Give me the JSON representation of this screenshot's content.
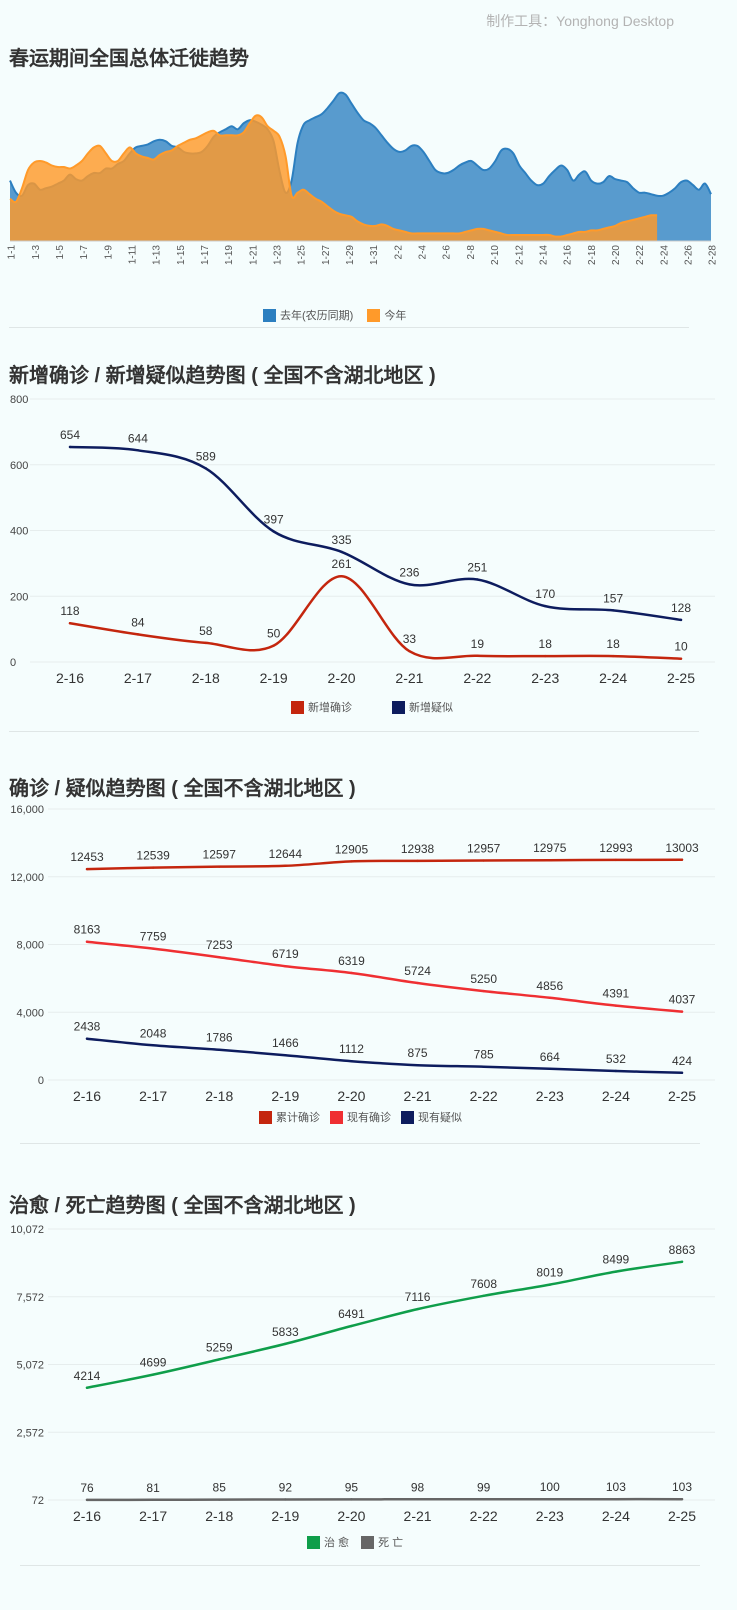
{
  "credit": "制作工具：Yonghong Desktop",
  "colors": {
    "last_year": "#2c7fc0",
    "this_year": "#ff9a2a",
    "new_confirmed": "#c4260e",
    "new_suspected": "#0d1c5e",
    "total_confirmed": "#c4260e",
    "current_confirmed": "#ef2f32",
    "current_suspected": "#0d1c5e",
    "cured": "#0f9e4a",
    "dead": "#666666"
  },
  "panels": {
    "migration": {
      "title": "春运期间全国总体迁徙趋势",
      "legend": [
        "去年(农历同期)",
        "今年"
      ]
    },
    "new_cases": {
      "title": "新增确诊 / 新增疑似趋势图 ( 全国不含湖北地区 )",
      "legend": [
        "新增确诊",
        "新增疑似"
      ]
    },
    "cumulative": {
      "title": "确诊 / 疑似趋势图 ( 全国不含湖北地区 )",
      "legend": [
        "累计确诊",
        "现有确诊",
        "现有疑似"
      ]
    },
    "outcomes": {
      "title": "治愈 / 死亡趋势图 ( 全国不含湖北地区 )",
      "legend": [
        "治 愈",
        "死 亡"
      ]
    }
  },
  "chart_data": [
    {
      "type": "area",
      "title": "春运期间全国总体迁徙趋势",
      "x_ticks": [
        "1-1",
        "1-3",
        "1-5",
        "1-7",
        "1-9",
        "1-11",
        "1-13",
        "1-15",
        "1-17",
        "1-19",
        "1-21",
        "1-23",
        "1-25",
        "1-27",
        "1-29",
        "1-31",
        "2-2",
        "2-4",
        "2-6",
        "2-8",
        "2-10",
        "2-12",
        "2-14",
        "2-16",
        "2-18",
        "2-20",
        "2-22",
        "2-24",
        "2-26",
        "2-28"
      ],
      "ylim": [
        0,
        100
      ],
      "series": [
        {
          "name": "去年(农历同期)",
          "values": [
            40,
            32,
            30,
            37,
            38,
            34,
            35,
            36,
            38,
            40,
            44,
            41,
            40,
            43,
            45,
            45,
            48,
            48,
            51,
            53,
            58,
            62,
            63,
            64,
            66,
            67,
            66,
            63,
            62,
            59,
            58,
            58,
            59,
            63,
            69,
            72,
            74,
            76,
            74,
            78,
            80,
            79,
            77,
            74,
            66,
            46,
            32,
            40,
            65,
            77,
            80,
            82,
            84,
            88,
            93,
            98,
            97,
            91,
            85,
            80,
            78,
            75,
            70,
            65,
            61,
            59,
            60,
            63,
            63,
            59,
            53,
            47,
            45,
            45,
            47,
            50,
            52,
            53,
            50,
            47,
            48,
            53,
            60,
            61,
            58,
            50,
            45,
            40,
            37,
            38,
            43,
            47,
            50,
            47,
            40,
            44,
            46,
            40,
            38,
            39,
            43,
            41,
            40,
            39,
            35,
            32,
            32,
            31,
            30,
            30,
            32,
            35,
            39,
            40,
            37,
            34,
            38,
            31
          ]
        },
        {
          "name": "今年",
          "values": [
            28,
            26,
            35,
            47,
            52,
            53,
            52,
            50,
            49,
            49,
            48,
            50,
            53,
            58,
            62,
            63,
            58,
            53,
            53,
            58,
            62,
            58,
            56,
            55,
            54,
            57,
            59,
            60,
            63,
            65,
            67,
            68,
            70,
            72,
            73,
            70,
            70,
            70,
            70,
            72,
            78,
            83,
            82,
            76,
            73,
            69,
            56,
            30,
            32,
            34,
            31,
            28,
            26,
            23,
            20,
            18,
            17,
            16,
            13,
            11,
            10,
            10,
            11,
            10,
            8,
            7,
            6,
            5,
            5,
            5,
            5,
            5,
            5,
            5,
            5,
            5,
            6,
            7,
            8,
            8,
            7,
            6,
            5,
            4,
            4,
            4,
            4,
            4,
            4,
            4,
            4,
            3,
            3,
            4,
            5,
            6,
            6,
            7,
            7,
            8,
            9,
            10,
            12,
            13,
            14,
            15,
            16,
            17,
            17,
            null,
            null,
            null,
            null,
            null,
            null,
            null,
            null,
            null
          ]
        }
      ]
    },
    {
      "type": "line",
      "title": "新增确诊 / 新增疑似趋势图 ( 全国不含湖北地区 )",
      "categories": [
        "2-16",
        "2-17",
        "2-18",
        "2-19",
        "2-20",
        "2-21",
        "2-22",
        "2-23",
        "2-24",
        "2-25"
      ],
      "ylim": [
        0,
        800
      ],
      "y_ticks": [
        "0",
        "200",
        "400",
        "600",
        "800"
      ],
      "series": [
        {
          "name": "新增确诊",
          "values": [
            118,
            84,
            58,
            50,
            261,
            33,
            19,
            18,
            18,
            10
          ]
        },
        {
          "name": "新增疑似",
          "values": [
            654,
            644,
            589,
            397,
            335,
            236,
            251,
            170,
            157,
            128
          ]
        }
      ]
    },
    {
      "type": "line",
      "title": "确诊 / 疑似趋势图 ( 全国不含湖北地区 )",
      "categories": [
        "2-16",
        "2-17",
        "2-18",
        "2-19",
        "2-20",
        "2-21",
        "2-22",
        "2-23",
        "2-24",
        "2-25"
      ],
      "ylim": [
        0,
        16000
      ],
      "y_ticks": [
        "0",
        "4,000",
        "8,000",
        "12,000",
        "16,000"
      ],
      "series": [
        {
          "name": "累计确诊",
          "values": [
            12453,
            12539,
            12597,
            12644,
            12905,
            12938,
            12957,
            12975,
            12993,
            13003
          ]
        },
        {
          "name": "现有确诊",
          "values": [
            8163,
            7759,
            7253,
            6719,
            6319,
            5724,
            5250,
            4856,
            4391,
            4037
          ]
        },
        {
          "name": "现有疑似",
          "values": [
            2438,
            2048,
            1786,
            1466,
            1112,
            875,
            785,
            664,
            532,
            424
          ]
        }
      ]
    },
    {
      "type": "line",
      "title": "治愈 / 死亡趋势图 ( 全国不含湖北地区 )",
      "categories": [
        "2-16",
        "2-17",
        "2-18",
        "2-19",
        "2-20",
        "2-21",
        "2-22",
        "2-23",
        "2-24",
        "2-25"
      ],
      "ylim": [
        72,
        10072
      ],
      "y_ticks": [
        "72",
        "2,572",
        "5,072",
        "7,572",
        "10,072"
      ],
      "series": [
        {
          "name": "治 愈",
          "values": [
            4214,
            4699,
            5259,
            5833,
            6491,
            7116,
            7608,
            8019,
            8499,
            8863
          ]
        },
        {
          "name": "死 亡",
          "values": [
            76,
            81,
            85,
            92,
            95,
            98,
            99,
            100,
            103,
            103
          ]
        }
      ]
    }
  ]
}
